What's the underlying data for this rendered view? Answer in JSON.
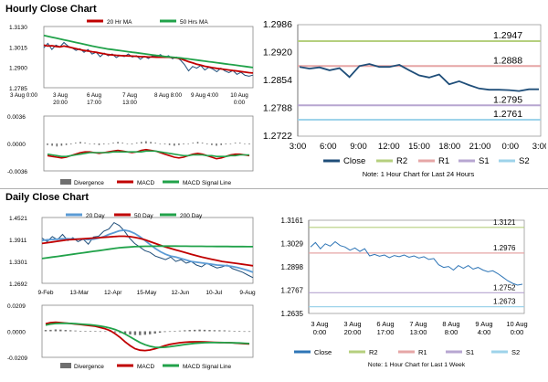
{
  "sections": {
    "hourly_title": "Hourly Close Chart",
    "daily_title": "Daily Close Chart"
  },
  "colors": {
    "close": "#1f4e79",
    "ma_short": "#c00000",
    "ma_long": "#21a24a",
    "r2": "#b5cf7e",
    "r1": "#e6a6a6",
    "s1": "#b7a6d1",
    "s2": "#9ed3ea",
    "divergence": "#6f6f6f",
    "macd": "#c00000",
    "signal": "#21a24a",
    "daily_close": "#2e75b6"
  },
  "chart_data": [
    {
      "id": "hourly-price",
      "type": "line",
      "legend": [
        "20 Hr MA",
        "50 Hrs MA"
      ],
      "legend_placement": "top",
      "ylim": [
        1.2785,
        1.313
      ],
      "y_ticks": [
        "1.3130",
        "1.3015",
        "1.2900",
        "1.2785"
      ],
      "x_ticks": [
        [
          "3 Aug 0:00",
          ""
        ],
        [
          "3 Aug",
          "20:00"
        ],
        [
          "6 Aug",
          "17:00"
        ],
        [
          "7 Aug",
          "13:00"
        ],
        [
          "8 Aug 8:00",
          ""
        ],
        [
          "9 Aug 4:00",
          ""
        ],
        [
          "10 Aug",
          "0:00"
        ]
      ],
      "series": [
        {
          "name": "Close",
          "values": [
            1.301,
            1.3035,
            1.3,
            1.3025,
            1.3015,
            1.304,
            1.302,
            1.301,
            1.2995,
            1.3005,
            1.2985,
            1.3,
            1.2975,
            1.2985,
            1.296,
            1.298,
            1.2965,
            1.2975,
            1.2955,
            1.2968,
            1.296,
            1.2975,
            1.2958,
            1.2965,
            1.2945,
            1.2962,
            1.295,
            1.2965,
            1.296,
            1.2972,
            1.2955,
            1.2965,
            1.2948,
            1.2958,
            1.294,
            1.2915,
            1.288,
            1.2905,
            1.2895,
            1.291,
            1.2885,
            1.29,
            1.289,
            1.2875,
            1.2895,
            1.288,
            1.287,
            1.2882,
            1.286,
            1.2872,
            1.2855,
            1.285,
            1.2856
          ]
        },
        {
          "name": "20 Hr MA",
          "values": [
            1.3025,
            1.302,
            1.3022,
            1.3018,
            1.3015,
            1.302,
            1.3015,
            1.301,
            1.3005,
            1.3,
            1.2995,
            1.2992,
            1.2988,
            1.2985,
            1.298,
            1.2976,
            1.2972,
            1.297,
            1.2968,
            1.2966,
            1.2965,
            1.2964,
            1.2963,
            1.2962,
            1.296,
            1.296,
            1.2958,
            1.2958,
            1.2957,
            1.2957,
            1.2957,
            1.2957,
            1.2955,
            1.2953,
            1.2948,
            1.294,
            1.2932,
            1.2925,
            1.2918,
            1.2912,
            1.2906,
            1.2902,
            1.2898,
            1.2894,
            1.2891,
            1.2888,
            1.2885,
            1.2882,
            1.2879,
            1.2876,
            1.2873,
            1.287,
            1.2868
          ]
        },
        {
          "name": "50 Hrs MA",
          "values": [
            1.308,
            1.3075,
            1.307,
            1.3065,
            1.306,
            1.3055,
            1.305,
            1.3045,
            1.304,
            1.3035,
            1.303,
            1.3025,
            1.302,
            1.3015,
            1.3011,
            1.3007,
            1.3003,
            1.3,
            1.2997,
            1.2994,
            1.2991,
            1.2988,
            1.2985,
            1.2982,
            1.2979,
            1.2976,
            1.2973,
            1.297,
            1.2967,
            1.2964,
            1.2961,
            1.2959,
            1.2957,
            1.2955,
            1.2953,
            1.295,
            1.2947,
            1.2944,
            1.2941,
            1.2938,
            1.2935,
            1.2932,
            1.2929,
            1.2926,
            1.2923,
            1.292,
            1.2917,
            1.2914,
            1.2911,
            1.2908,
            1.2905,
            1.2902,
            1.2899
          ]
        }
      ]
    },
    {
      "id": "hourly-macd",
      "type": "line",
      "legend": [
        "Divergence",
        "MACD",
        "MACD Signal Line"
      ],
      "legend_placement": "bottom",
      "ylim": [
        -0.0036,
        0.0036
      ],
      "y_ticks": [
        "0.0036",
        "0.0000",
        "-0.0036"
      ],
      "series": [
        {
          "name": "Divergence",
          "values": [
            -0.0002,
            -0.0003,
            -0.0004,
            -0.0003,
            -0.0002,
            -0.0001,
            0.0001,
            0.0002,
            0.0001,
            0.0,
            -0.0001,
            -0.0002,
            -0.0001,
            0.0,
            0.0001,
            0.0002,
            0.0001,
            0.0,
            -0.0001,
            0.0001,
            0.0002,
            0.0003,
            0.0002,
            0.0001,
            0.0,
            -0.0001,
            -0.0002,
            -0.0003,
            -0.0002,
            -0.0001,
            0.0,
            0.0001,
            0.0002,
            0.0001,
            -0.0001,
            -0.0002,
            -0.0003,
            -0.0002,
            -0.0001,
            0.0,
            0.0001,
            0.0001,
            0.0,
            -0.0001
          ]
        },
        {
          "name": "MACD",
          "values": [
            -0.0016,
            -0.0017,
            -0.0018,
            -0.0019,
            -0.0018,
            -0.0016,
            -0.0014,
            -0.0012,
            -0.0011,
            -0.0011,
            -0.0012,
            -0.0013,
            -0.0012,
            -0.0011,
            -0.001,
            -0.0009,
            -0.001,
            -0.0011,
            -0.0012,
            -0.0011,
            -0.0009,
            -0.0008,
            -0.0009,
            -0.001,
            -0.0012,
            -0.0014,
            -0.0016,
            -0.0018,
            -0.0019,
            -0.0018,
            -0.0016,
            -0.0014,
            -0.0013,
            -0.0014,
            -0.0016,
            -0.0018,
            -0.002,
            -0.0019,
            -0.0017,
            -0.0015,
            -0.0014,
            -0.0014,
            -0.0015,
            -0.0016
          ]
        },
        {
          "name": "MACD Signal Line",
          "values": [
            -0.0014,
            -0.0015,
            -0.0016,
            -0.0017,
            -0.0017,
            -0.0016,
            -0.0015,
            -0.0014,
            -0.0013,
            -0.0012,
            -0.0012,
            -0.0012,
            -0.0012,
            -0.0012,
            -0.0011,
            -0.0011,
            -0.0011,
            -0.0011,
            -0.0011,
            -0.0011,
            -0.0011,
            -0.001,
            -0.001,
            -0.001,
            -0.0011,
            -0.0012,
            -0.0013,
            -0.0014,
            -0.0015,
            -0.0016,
            -0.0016,
            -0.0015,
            -0.0015,
            -0.0015,
            -0.0016,
            -0.0016,
            -0.0017,
            -0.0017,
            -0.0017,
            -0.0016,
            -0.0016,
            -0.0015,
            -0.0015,
            -0.0015
          ]
        }
      ]
    },
    {
      "id": "hourly-pivot",
      "type": "line",
      "ylim": [
        1.2722,
        1.2986
      ],
      "y_ticks": [
        "1.2986",
        "1.2920",
        "1.2854",
        "1.2788",
        "1.2722"
      ],
      "x_ticks": [
        "3:00",
        "6:00",
        "9:00",
        "12:00",
        "15:00",
        "18:00",
        "21:00",
        "0:00",
        "3:00"
      ],
      "levels": [
        {
          "name": "R2",
          "value": 1.2947,
          "label": "1.2947"
        },
        {
          "name": "R1",
          "value": 1.2888,
          "label": "1.2888"
        },
        {
          "name": "S1",
          "value": 1.2795,
          "label": "1.2795"
        },
        {
          "name": "S2",
          "value": 1.2761,
          "label": "1.2761"
        }
      ],
      "series": [
        {
          "name": "Close",
          "values": [
            1.2886,
            1.2882,
            1.2885,
            1.2878,
            1.2883,
            1.2862,
            1.2888,
            1.2893,
            1.2886,
            1.2886,
            1.2891,
            1.2878,
            1.2866,
            1.2861,
            1.2868,
            1.2845,
            1.2852,
            1.2843,
            1.2835,
            1.2832,
            1.2832,
            1.2831,
            1.2829,
            1.2833,
            1.2833
          ]
        }
      ],
      "legend": [
        "Close",
        "R2",
        "R1",
        "S1",
        "S2"
      ],
      "legend_placement": "bottom",
      "note": "Note: 1 Hour Chart for Last 24 Hours"
    },
    {
      "id": "daily-price",
      "type": "line",
      "legend": [
        "20 Day",
        "50 Day",
        "200 Day"
      ],
      "legend_placement": "top",
      "ylim": [
        1.2692,
        1.4521
      ],
      "y_ticks": [
        "1.4521",
        "1.3911",
        "1.3301",
        "1.2692"
      ],
      "x_ticks": [
        "9-Feb",
        "13-Mar",
        "12-Apr",
        "15-May",
        "12-Jun",
        "10-Jul",
        "9-Aug"
      ],
      "series": [
        {
          "name": "Close",
          "values": [
            1.395,
            1.385,
            1.399,
            1.39,
            1.405,
            1.388,
            1.396,
            1.385,
            1.392,
            1.378,
            1.398,
            1.4,
            1.414,
            1.42,
            1.438,
            1.43,
            1.415,
            1.395,
            1.38,
            1.37,
            1.36,
            1.355,
            1.345,
            1.34,
            1.335,
            1.342,
            1.33,
            1.335,
            1.325,
            1.33,
            1.32,
            1.315,
            1.325,
            1.318,
            1.312,
            1.315,
            1.32,
            1.31,
            1.305,
            1.3,
            1.292,
            1.285
          ]
        },
        {
          "name": "20 Day",
          "values": [
            1.388,
            1.39,
            1.391,
            1.392,
            1.393,
            1.393,
            1.3925,
            1.392,
            1.3915,
            1.391,
            1.392,
            1.395,
            1.399,
            1.405,
            1.41,
            1.415,
            1.417,
            1.414,
            1.408,
            1.399,
            1.388,
            1.377,
            1.366,
            1.357,
            1.35,
            1.345,
            1.342,
            1.338,
            1.334,
            1.33,
            1.328,
            1.326,
            1.324,
            1.322,
            1.32,
            1.319,
            1.318,
            1.316,
            1.313,
            1.309,
            1.305,
            1.3
          ]
        },
        {
          "name": "50 Day",
          "values": [
            1.38,
            1.382,
            1.384,
            1.386,
            1.388,
            1.39,
            1.391,
            1.392,
            1.393,
            1.394,
            1.395,
            1.396,
            1.397,
            1.398,
            1.399,
            1.4,
            1.4,
            1.399,
            1.397,
            1.394,
            1.39,
            1.385,
            1.38,
            1.375,
            1.37,
            1.366,
            1.362,
            1.358,
            1.354,
            1.35,
            1.346,
            1.342,
            1.339,
            1.336,
            1.333,
            1.33,
            1.328,
            1.326,
            1.324,
            1.322,
            1.32,
            1.318
          ]
        },
        {
          "name": "200 Day",
          "values": [
            1.338,
            1.34,
            1.342,
            1.344,
            1.346,
            1.348,
            1.35,
            1.352,
            1.354,
            1.356,
            1.358,
            1.36,
            1.362,
            1.364,
            1.366,
            1.368,
            1.369,
            1.37,
            1.371,
            1.3715,
            1.372,
            1.3722,
            1.3724,
            1.3725,
            1.3725,
            1.3725,
            1.3725,
            1.3724,
            1.3723,
            1.3722,
            1.3721,
            1.372,
            1.3719,
            1.3718,
            1.3717,
            1.3716,
            1.3715,
            1.3714,
            1.3713,
            1.3712,
            1.3711,
            1.371
          ]
        }
      ]
    },
    {
      "id": "daily-macd",
      "type": "line",
      "legend": [
        "Divergence",
        "MACD",
        "MACD Signal Line"
      ],
      "legend_placement": "bottom",
      "ylim": [
        -0.0209,
        0.0209
      ],
      "y_ticks": [
        "0.0209",
        "0.0000",
        "-0.0209"
      ],
      "series": [
        {
          "name": "Divergence",
          "values": [
            0.001,
            0.0012,
            0.0015,
            0.0013,
            0.001,
            0.0008,
            0.0006,
            0.0004,
            0.0003,
            0.0002,
            0.0001,
            0.0,
            -0.0002,
            -0.0004,
            -0.0008,
            -0.0014,
            -0.002,
            -0.0026,
            -0.003,
            -0.0031,
            -0.0028,
            -0.0024,
            -0.0018,
            -0.0012,
            -0.0006,
            -0.0002,
            0.0002,
            0.0005,
            0.0008,
            0.001,
            0.0012,
            0.0013,
            0.0012,
            0.001,
            0.0009,
            0.0008,
            0.0007,
            0.0005,
            0.0003,
            0.0001,
            0.0,
            -0.0001
          ]
        },
        {
          "name": "MACD",
          "values": [
            0.006,
            0.007,
            0.0072,
            0.007,
            0.0066,
            0.0062,
            0.0058,
            0.0054,
            0.005,
            0.0045,
            0.004,
            0.003,
            0.002,
            0.0005,
            -0.002,
            -0.005,
            -0.0085,
            -0.0115,
            -0.014,
            -0.0152,
            -0.0155,
            -0.015,
            -0.014,
            -0.0128,
            -0.0115,
            -0.0105,
            -0.0098,
            -0.0092,
            -0.0088,
            -0.0085,
            -0.0084,
            -0.0084,
            -0.0085,
            -0.0087,
            -0.0089,
            -0.009,
            -0.0091,
            -0.0092,
            -0.0094,
            -0.0097,
            -0.01,
            -0.0102
          ]
        },
        {
          "name": "MACD Signal Line",
          "values": [
            0.005,
            0.0058,
            0.0062,
            0.0064,
            0.0064,
            0.0063,
            0.0061,
            0.0058,
            0.0055,
            0.0052,
            0.0048,
            0.0042,
            0.0035,
            0.0026,
            0.0014,
            -0.0002,
            -0.0022,
            -0.0045,
            -0.0068,
            -0.009,
            -0.0108,
            -0.012,
            -0.0128,
            -0.013,
            -0.0128,
            -0.0124,
            -0.0118,
            -0.0112,
            -0.0106,
            -0.0101,
            -0.0097,
            -0.0094,
            -0.0092,
            -0.0091,
            -0.0091,
            -0.0091,
            -0.0091,
            -0.0092,
            -0.0093,
            -0.0094,
            -0.0096,
            -0.0098
          ]
        }
      ]
    },
    {
      "id": "daily-pivot",
      "type": "line",
      "ylim": [
        1.2635,
        1.3161
      ],
      "y_ticks": [
        "1.3161",
        "1.3029",
        "1.2898",
        "1.2767",
        "1.2635"
      ],
      "x_ticks": [
        [
          "3 Aug",
          "0:00"
        ],
        [
          "3 Aug",
          "20:00"
        ],
        [
          "6 Aug",
          "17:00"
        ],
        [
          "7 Aug",
          "13:00"
        ],
        [
          "8 Aug",
          "8:00"
        ],
        [
          "9 Aug",
          "4:00"
        ],
        [
          "10 Aug",
          "0:00"
        ]
      ],
      "levels": [
        {
          "name": "R2",
          "value": 1.3121,
          "label": "1.3121"
        },
        {
          "name": "R1",
          "value": 1.2976,
          "label": "1.2976"
        },
        {
          "name": "S1",
          "value": 1.2752,
          "label": "1.2752"
        },
        {
          "name": "S2",
          "value": 1.2673,
          "label": "1.2673"
        }
      ],
      "series": [
        {
          "name": "Close",
          "values": [
            1.301,
            1.3035,
            1.3,
            1.3028,
            1.3015,
            1.304,
            1.3018,
            1.301,
            1.2992,
            1.3005,
            1.2985,
            1.3,
            1.296,
            1.2968,
            1.2958,
            1.2965,
            1.295,
            1.2962,
            1.2955,
            1.2965,
            1.2952,
            1.296,
            1.2948,
            1.2955,
            1.294,
            1.2945,
            1.291,
            1.2895,
            1.29,
            1.288,
            1.2905,
            1.289,
            1.2905,
            1.2885,
            1.2895,
            1.288,
            1.287,
            1.2876,
            1.286,
            1.284,
            1.282,
            1.2805,
            1.2795,
            1.28
          ]
        }
      ],
      "legend": [
        "Close",
        "R2",
        "R1",
        "S1",
        "S2"
      ],
      "legend_placement": "bottom",
      "note": "Note: 1 Hour Chart for Last 1 Week"
    }
  ]
}
